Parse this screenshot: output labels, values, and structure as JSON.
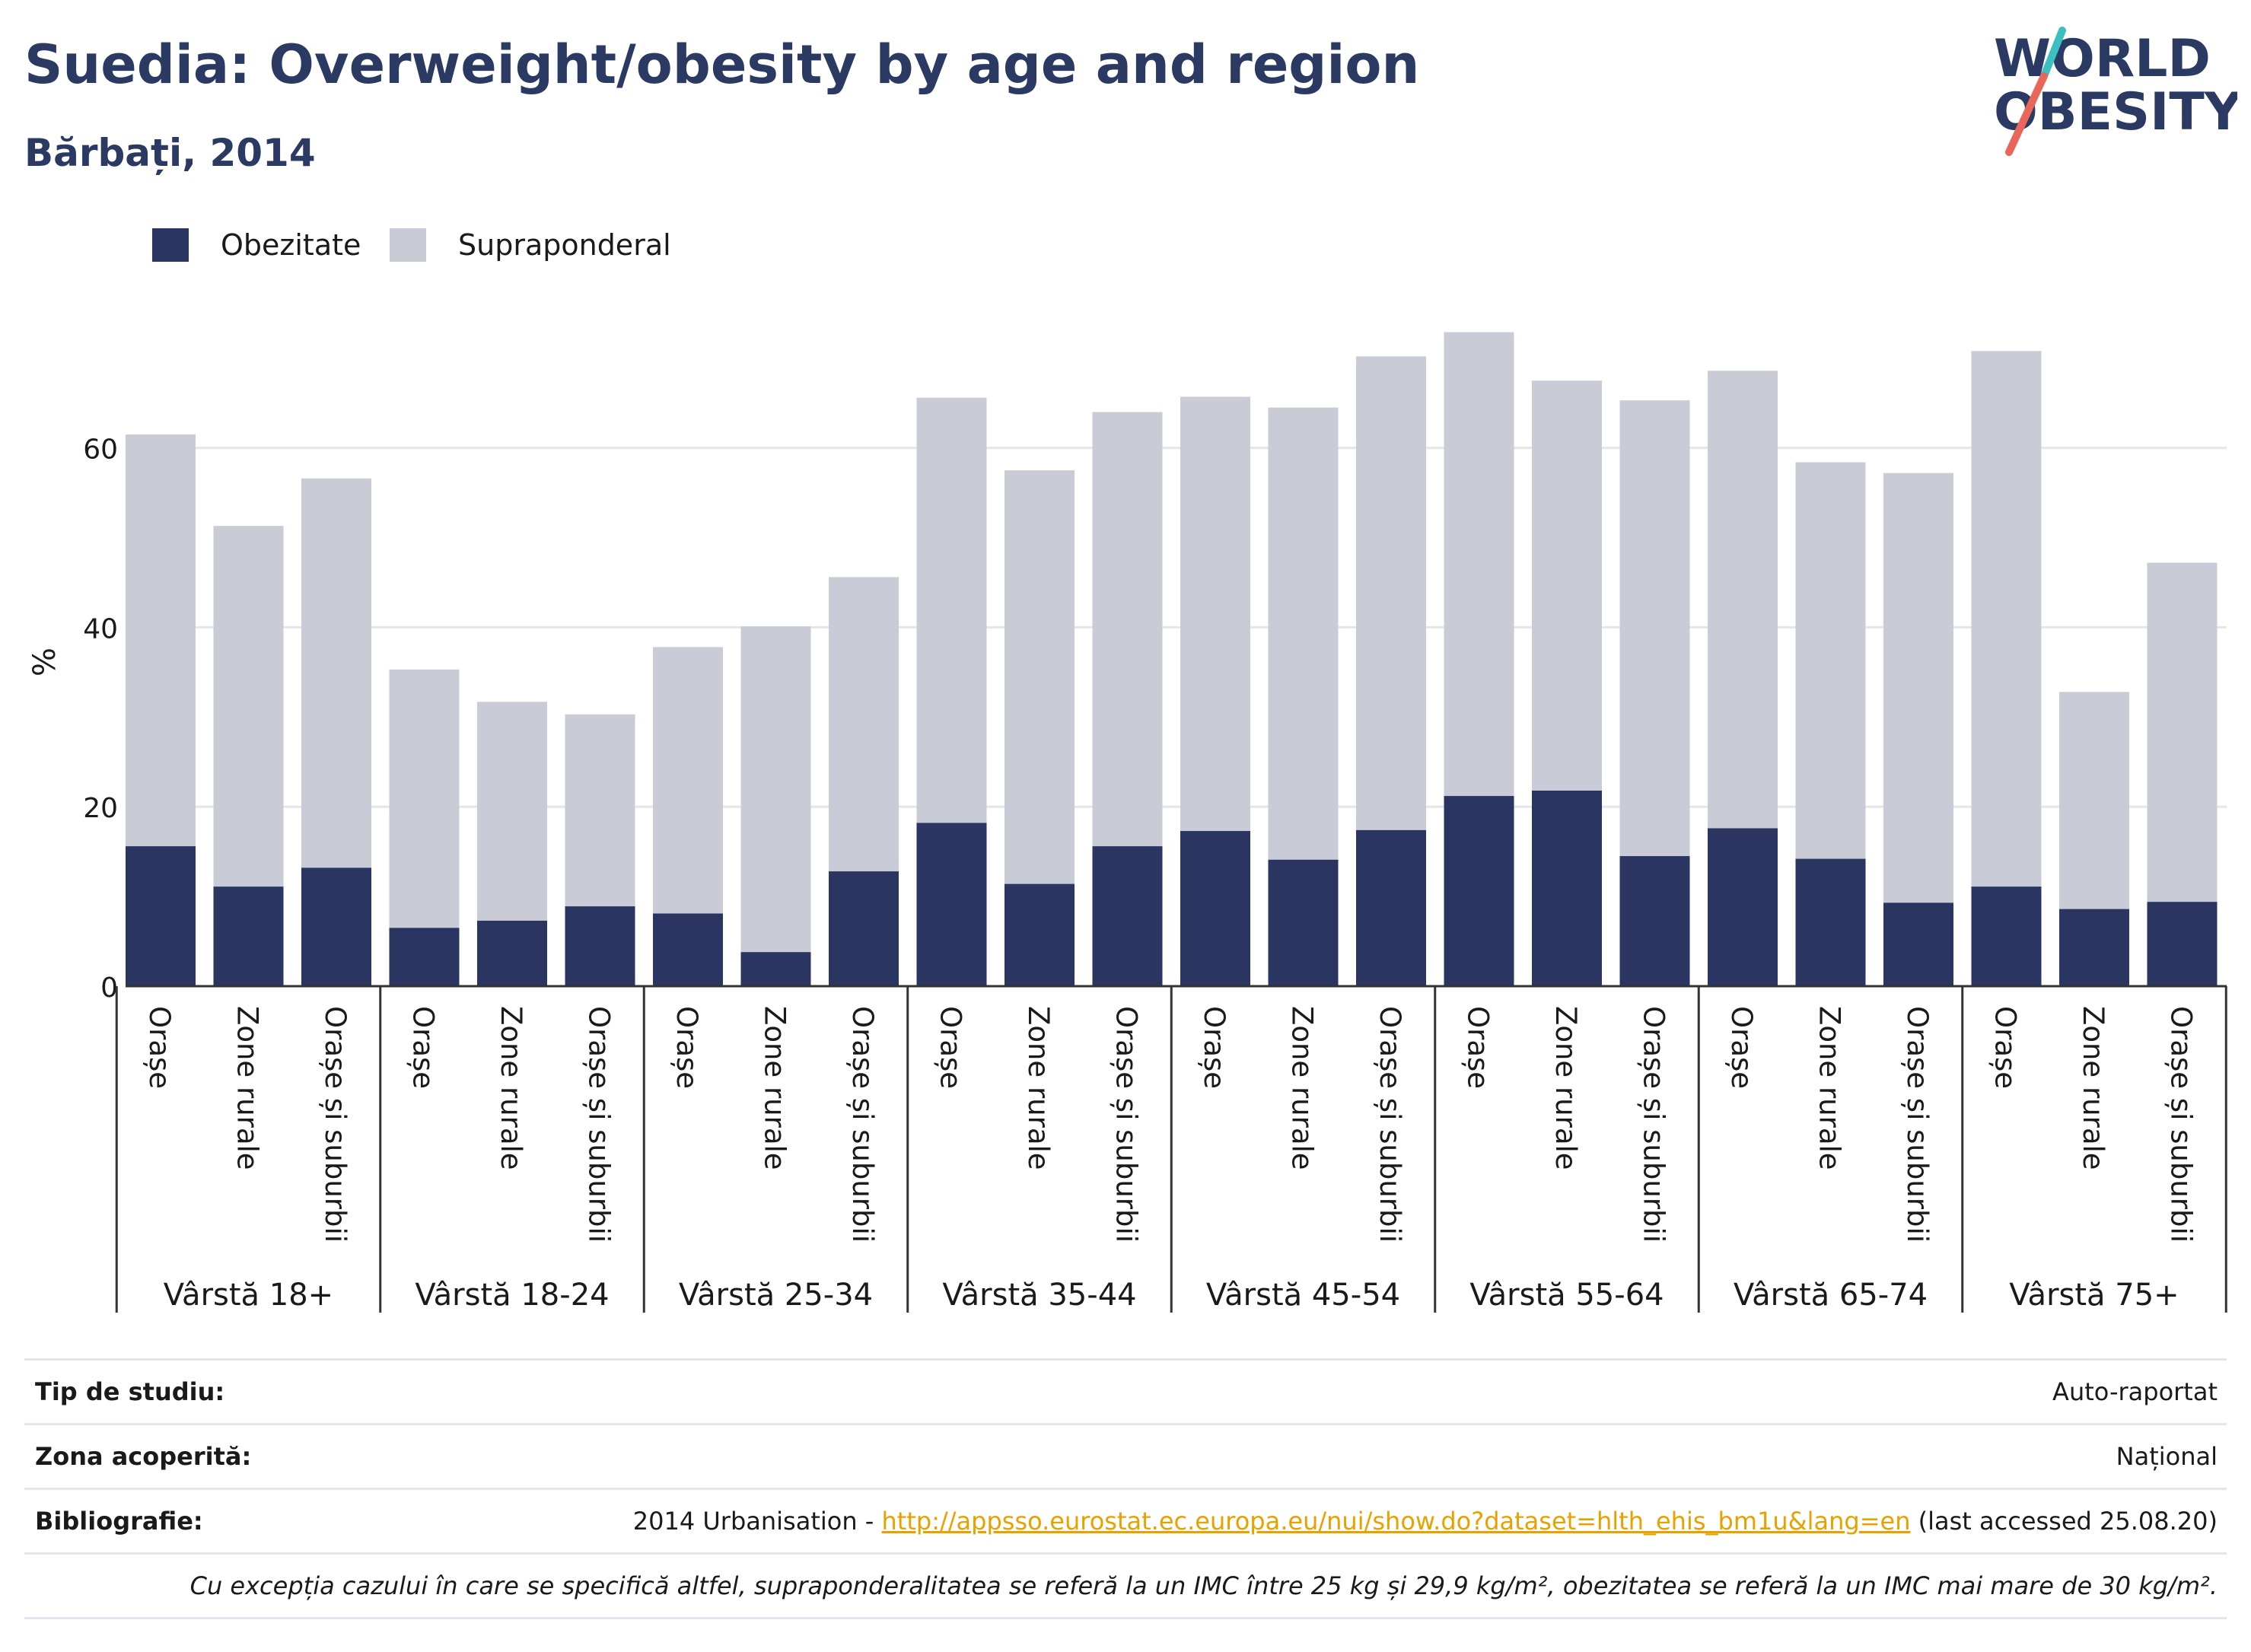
{
  "header": {
    "title": "Suedia: Overweight/obesity by age and region",
    "subtitle": "Bărbați, 2014"
  },
  "logo": {
    "line1": "WORLD",
    "line2": "OBESITY"
  },
  "colors": {
    "obesity": "#2a3561",
    "overweight": "#c9cbd6",
    "title": "#2b3a63",
    "grid": "#e6e6ea",
    "link": "#e8a200",
    "logo_teal": "#3bbfc0",
    "logo_red": "#e8665a"
  },
  "legend": {
    "items": [
      {
        "label": "Obezitate",
        "color": "#2a3561"
      },
      {
        "label": "Supraponderal",
        "color": "#c9cbd6"
      }
    ]
  },
  "chart_data": {
    "type": "bar",
    "stacked": true,
    "ylabel": "%",
    "ylim": [
      0,
      76
    ],
    "yticks": [
      0,
      20,
      40,
      60
    ],
    "grid": true,
    "legend_position": "top-left",
    "groups": [
      "Vârstă 18+",
      "Vârstă 18-24",
      "Vârstă 25-34",
      "Vârstă 35-44",
      "Vârstă 45-54",
      "Vârstă 55-64",
      "Vârstă 65-74",
      "Vârstă 75+"
    ],
    "subcategories": [
      "Orașe",
      "Zone rurale",
      "Orașe și suburbii"
    ],
    "series": [
      {
        "name": "Obezitate",
        "values": [
          15.6,
          11.1,
          13.2,
          6.5,
          7.3,
          8.9,
          8.1,
          3.8,
          12.8,
          18.2,
          11.4,
          15.6,
          17.3,
          14.1,
          17.4,
          21.2,
          21.8,
          14.5,
          17.6,
          14.2,
          9.3,
          11.1,
          8.6,
          9.4
        ]
      },
      {
        "name": "Supraponderal",
        "values": [
          45.9,
          40.2,
          43.4,
          28.8,
          24.4,
          21.4,
          29.7,
          36.3,
          32.8,
          47.4,
          46.1,
          48.4,
          48.4,
          50.4,
          52.8,
          51.7,
          45.7,
          50.8,
          51.0,
          44.2,
          47.9,
          59.7,
          24.2,
          37.8
        ]
      }
    ]
  },
  "info": {
    "rows": [
      {
        "key": "Tip de studiu:",
        "value": "Auto-raportat"
      },
      {
        "key": "Zona acoperită:",
        "value": "Național"
      }
    ],
    "bibliography": {
      "key": "Bibliografie:",
      "prefix": "2014 Urbanisation - ",
      "link": "http://appsso.eurostat.ec.europa.eu/nui/show.do?dataset=hlth_ehis_bm1u&lang=en",
      "suffix": " (last accessed 25.08.20)"
    },
    "note": "Cu excepția cazului în care se specifică altfel, supraponderalitatea se referă la un IMC între 25 kg și 29,9 kg/m², obezitatea se referă la un IMC mai mare de 30 kg/m²."
  }
}
